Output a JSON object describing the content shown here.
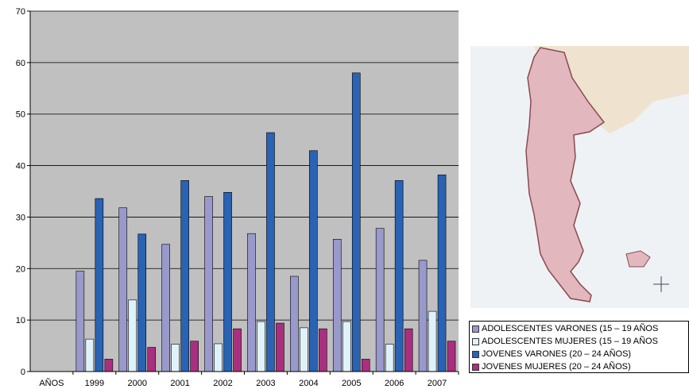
{
  "chart_data": {
    "type": "bar",
    "categories": [
      "1999",
      "2000",
      "2001",
      "2002",
      "2003",
      "2004",
      "2005",
      "2006",
      "2007"
    ],
    "x_axis_first_label": "AÑOS",
    "ylim": [
      0,
      70
    ],
    "yticks": [
      0,
      10,
      20,
      30,
      40,
      50,
      60,
      70
    ],
    "grid": true,
    "plot_background": "#c0c0c0",
    "legend_position": "bottom-right",
    "series": [
      {
        "name": "ADOLESCENTES VARONES (15 – 19 AÑOS",
        "color": "#9999cc",
        "values": [
          19.5,
          31.8,
          24.7,
          34.0,
          26.8,
          18.5,
          25.7,
          27.8,
          21.6
        ]
      },
      {
        "name": "ADOLESCENTES MUJERES (15 – 19 AÑOS",
        "color": "#dff2fb",
        "values": [
          6.3,
          13.9,
          5.3,
          5.4,
          9.7,
          8.5,
          9.7,
          5.3,
          11.7
        ]
      },
      {
        "name": "JOVENES VARONES (20 – 24 AÑOS)",
        "color": "#2a62b4",
        "values": [
          33.6,
          26.7,
          37.1,
          34.8,
          46.4,
          42.9,
          58.0,
          37.1,
          38.2
        ]
      },
      {
        "name": "JOVENES MUJERES (20 – 24 AÑOS)",
        "color": "#a8307e",
        "values": [
          2.4,
          4.7,
          5.9,
          8.3,
          9.4,
          8.3,
          2.4,
          8.3,
          5.9
        ]
      }
    ]
  }
}
